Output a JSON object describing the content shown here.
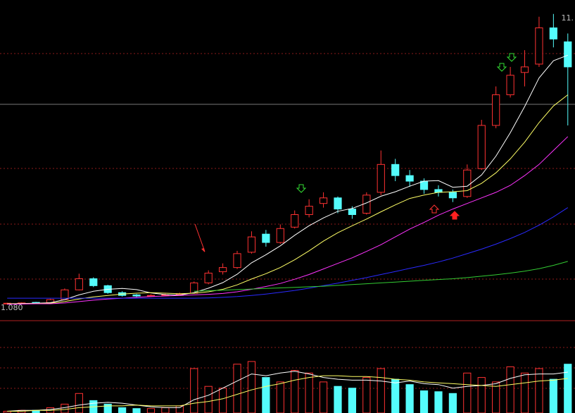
{
  "chart_data": [
    {
      "type": "candlestick",
      "ylim": [
        1.0,
        12.0
      ],
      "up_color": "#ff3232",
      "down_color": "#54fcfc",
      "open": [
        1.1,
        1.12,
        1.15,
        1.14,
        1.25,
        1.6,
        2.0,
        1.75,
        1.5,
        1.42,
        1.38,
        1.4,
        1.42,
        1.48,
        1.85,
        2.25,
        2.4,
        2.95,
        3.6,
        3.3,
        3.85,
        4.3,
        4.7,
        4.9,
        4.5,
        4.35,
        5.1,
        6.1,
        5.7,
        5.5,
        5.2,
        5.1,
        4.95,
        5.95,
        7.5,
        8.6,
        9.4,
        9.7,
        11.0,
        10.5
      ],
      "high": [
        1.14,
        1.15,
        1.17,
        1.28,
        1.65,
        2.18,
        2.05,
        1.78,
        1.55,
        1.45,
        1.44,
        1.46,
        1.5,
        1.9,
        2.3,
        2.55,
        3.0,
        3.7,
        3.75,
        3.95,
        4.45,
        4.85,
        5.1,
        4.95,
        4.6,
        5.1,
        6.6,
        6.3,
        5.9,
        5.6,
        5.35,
        5.2,
        6.1,
        7.7,
        8.9,
        9.6,
        10.2,
        11.4,
        11.5,
        10.8
      ],
      "low": [
        1.08,
        1.1,
        1.12,
        1.13,
        1.23,
        1.58,
        1.7,
        1.46,
        1.36,
        1.34,
        1.35,
        1.37,
        1.4,
        1.46,
        1.8,
        2.15,
        2.35,
        2.9,
        3.15,
        3.25,
        3.8,
        4.2,
        4.55,
        4.35,
        4.15,
        4.3,
        5.0,
        5.5,
        5.3,
        5.05,
        4.95,
        4.75,
        4.9,
        5.9,
        7.4,
        8.5,
        8.9,
        9.6,
        10.3,
        7.5
      ],
      "close": [
        1.12,
        1.13,
        1.14,
        1.25,
        1.6,
        2.0,
        1.75,
        1.5,
        1.4,
        1.38,
        1.4,
        1.42,
        1.45,
        1.85,
        2.2,
        2.4,
        2.9,
        3.5,
        3.3,
        3.8,
        4.3,
        4.6,
        4.9,
        4.5,
        4.3,
        5.0,
        6.1,
        5.7,
        5.5,
        5.2,
        5.1,
        4.9,
        5.9,
        7.5,
        8.6,
        9.3,
        9.6,
        11.0,
        10.6,
        9.6
      ],
      "series": [
        {
          "color": "#ffffff",
          "values": [
            1.1,
            1.11,
            1.12,
            1.14,
            1.25,
            1.42,
            1.55,
            1.62,
            1.65,
            1.61,
            1.49,
            1.43,
            1.41,
            1.5,
            1.66,
            1.86,
            2.16,
            2.57,
            2.86,
            3.18,
            3.56,
            3.9,
            4.18,
            4.42,
            4.52,
            4.72,
            4.96,
            5.12,
            5.32,
            5.5,
            5.52,
            5.28,
            5.32,
            5.72,
            6.4,
            7.24,
            8.18,
            9.2,
            9.82,
            10.02
          ]
        },
        {
          "color": "#ffff66",
          "values": [
            1.1,
            1.1,
            1.11,
            1.12,
            1.18,
            1.27,
            1.35,
            1.4,
            1.45,
            1.48,
            1.5,
            1.48,
            1.46,
            1.48,
            1.53,
            1.62,
            1.78,
            1.99,
            2.18,
            2.4,
            2.68,
            3.0,
            3.35,
            3.65,
            3.9,
            4.14,
            4.4,
            4.65,
            4.88,
            5.0,
            5.1,
            5.12,
            5.16,
            5.42,
            5.8,
            6.3,
            6.9,
            7.6,
            8.2,
            8.6
          ]
        },
        {
          "color": "#ff33ff",
          "values": [
            1.08,
            1.09,
            1.1,
            1.1,
            1.13,
            1.18,
            1.23,
            1.27,
            1.3,
            1.33,
            1.36,
            1.38,
            1.4,
            1.42,
            1.44,
            1.47,
            1.53,
            1.62,
            1.72,
            1.83,
            1.98,
            2.15,
            2.35,
            2.55,
            2.75,
            2.98,
            3.22,
            3.5,
            3.78,
            4.02,
            4.28,
            4.5,
            4.7,
            4.9,
            5.1,
            5.35,
            5.7,
            6.1,
            6.6,
            7.1
          ]
        },
        {
          "color": "#2a2aff",
          "values": [
            1.3,
            1.3,
            1.3,
            1.3,
            1.3,
            1.3,
            1.3,
            1.3,
            1.3,
            1.3,
            1.3,
            1.3,
            1.3,
            1.3,
            1.31,
            1.33,
            1.36,
            1.4,
            1.45,
            1.51,
            1.58,
            1.66,
            1.75,
            1.84,
            1.94,
            2.04,
            2.15,
            2.26,
            2.37,
            2.48,
            2.6,
            2.74,
            2.9,
            3.06,
            3.24,
            3.44,
            3.66,
            3.92,
            4.22,
            4.55
          ]
        },
        {
          "color": "#33cc33",
          "values": [
            null,
            null,
            null,
            null,
            null,
            null,
            null,
            null,
            null,
            null,
            null,
            null,
            null,
            1.55,
            1.57,
            1.59,
            1.61,
            1.63,
            1.65,
            1.67,
            1.69,
            1.71,
            1.73,
            1.76,
            1.79,
            1.82,
            1.85,
            1.88,
            1.91,
            1.94,
            1.97,
            2.0,
            2.04,
            2.09,
            2.14,
            2.2,
            2.27,
            2.36,
            2.48,
            2.62
          ]
        }
      ],
      "annotations": [
        {
          "text": "1.080",
          "value": 1.08
        },
        {
          "text": "11.",
          "value": 11.5
        }
      ]
    },
    {
      "type": "bar",
      "ylim": [
        0,
        100
      ],
      "values": [
        2,
        3,
        3,
        6,
        10,
        22,
        14,
        10,
        6,
        5,
        5,
        6,
        8,
        50,
        30,
        28,
        55,
        58,
        40,
        35,
        48,
        45,
        35,
        30,
        28,
        40,
        50,
        38,
        32,
        25,
        24,
        22,
        45,
        40,
        35,
        52,
        45,
        50,
        38,
        55
      ],
      "series": [
        {
          "color": "#ffffff",
          "values": [
            2,
            3,
            3,
            4,
            6,
            9,
            11,
            12,
            11,
            9,
            7,
            6,
            6,
            15,
            20,
            28,
            36,
            44,
            42,
            45,
            47,
            44,
            40,
            38,
            37,
            37,
            36,
            34,
            36,
            33,
            32,
            28,
            30,
            31,
            33,
            39,
            43,
            44,
            44,
            46
          ]
        },
        {
          "color": "#ffff66",
          "values": [
            2,
            2,
            3,
            3,
            4,
            6,
            7,
            8,
            8,
            9,
            8,
            8,
            8,
            11,
            13,
            16,
            21,
            26,
            30,
            33,
            37,
            40,
            42,
            42,
            41,
            41,
            40,
            38,
            37,
            35,
            34,
            33,
            32,
            31,
            30,
            32,
            34,
            36,
            37,
            39
          ]
        }
      ]
    }
  ]
}
